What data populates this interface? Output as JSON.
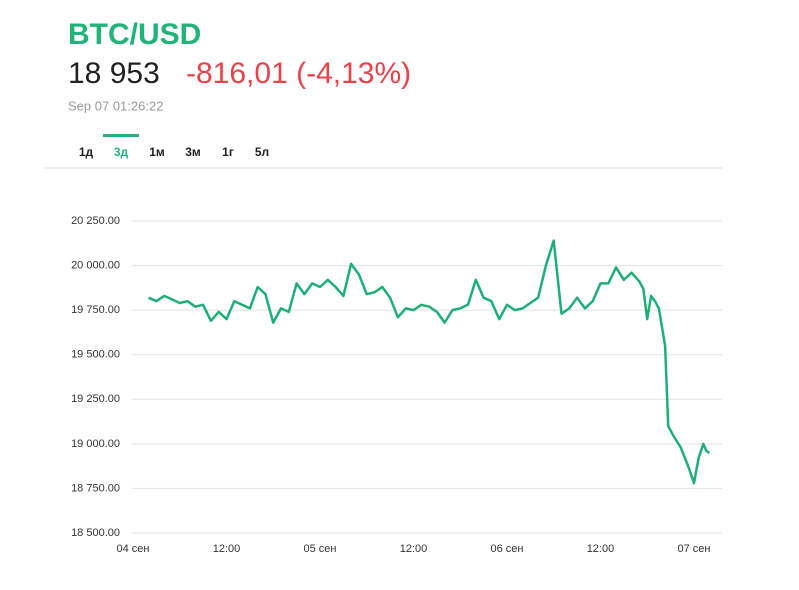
{
  "header": {
    "symbol": "BTC/USD",
    "price": "18 953",
    "change": "-816,01 (-4,13%)",
    "timestamp": "Sep 07 01:26:22"
  },
  "tabs": {
    "items": [
      "1д",
      "3д",
      "1м",
      "3м",
      "1г",
      "5л"
    ],
    "active": 1
  },
  "chart_data": {
    "type": "line",
    "x": [
      2,
      3,
      4,
      5,
      6,
      7,
      8,
      9,
      10,
      11,
      12,
      13,
      14,
      15,
      16,
      17,
      18,
      19,
      20,
      21,
      22,
      23,
      24,
      25,
      26,
      27,
      28,
      29,
      30,
      31,
      32,
      33,
      34,
      35,
      36,
      37,
      38,
      39,
      40,
      41,
      42,
      43,
      44,
      45,
      46,
      47,
      48,
      49,
      50,
      51,
      52,
      53,
      54,
      55,
      56,
      57,
      58,
      59,
      60,
      61,
      62,
      63,
      64,
      65,
      65.5,
      66,
      66.5,
      67,
      67.5,
      68.3,
      68.7,
      69.3,
      70.3,
      71.3,
      72,
      72.6,
      73.2,
      73.6,
      74
    ],
    "series": [
      {
        "name": "BTC/USD",
        "color": "#1fae78",
        "values": [
          19820,
          19800,
          19830,
          19810,
          19790,
          19800,
          19770,
          19780,
          19690,
          19740,
          19700,
          19800,
          19780,
          19760,
          19880,
          19840,
          19680,
          19760,
          19740,
          19900,
          19840,
          19900,
          19880,
          19920,
          19880,
          19830,
          20010,
          19950,
          19840,
          19850,
          19880,
          19820,
          19710,
          19760,
          19750,
          19780,
          19770,
          19740,
          19680,
          19750,
          19760,
          19780,
          19920,
          19820,
          19800,
          19700,
          19780,
          19750,
          19760,
          19790,
          19820,
          20000,
          20140,
          19730,
          19760,
          19820,
          19760,
          19800,
          19900,
          19900,
          19990,
          19920,
          19960,
          19910,
          19870,
          19700,
          19830,
          19800,
          19760,
          19550,
          19100,
          19050,
          18980,
          18870,
          18780,
          18920,
          19000,
          18960,
          18950
        ]
      }
    ],
    "xlim": [
      -1.7,
      75.6
    ],
    "xticks": [
      {
        "value": 0,
        "label": "04 сен"
      },
      {
        "value": 12,
        "label": "12:00"
      },
      {
        "value": 24,
        "label": "05 сен"
      },
      {
        "value": 36,
        "label": "12:00"
      },
      {
        "value": 48,
        "label": "06 сен"
      },
      {
        "value": 60,
        "label": "12:00"
      },
      {
        "value": 72,
        "label": "07 сен"
      }
    ],
    "ylim": [
      18500,
      20250
    ],
    "yticks": [
      {
        "value": 18500,
        "label": "18 500.00"
      },
      {
        "value": 18750,
        "label": "18 750.00"
      },
      {
        "value": 19000,
        "label": "19 000.00"
      },
      {
        "value": 19250,
        "label": "19 250.00"
      },
      {
        "value": 19500,
        "label": "19 500.00"
      },
      {
        "value": 19750,
        "label": "19 750.00"
      },
      {
        "value": 20000,
        "label": "20 000.00"
      },
      {
        "value": 20250,
        "label": "20 250.00"
      }
    ],
    "grid": true
  }
}
